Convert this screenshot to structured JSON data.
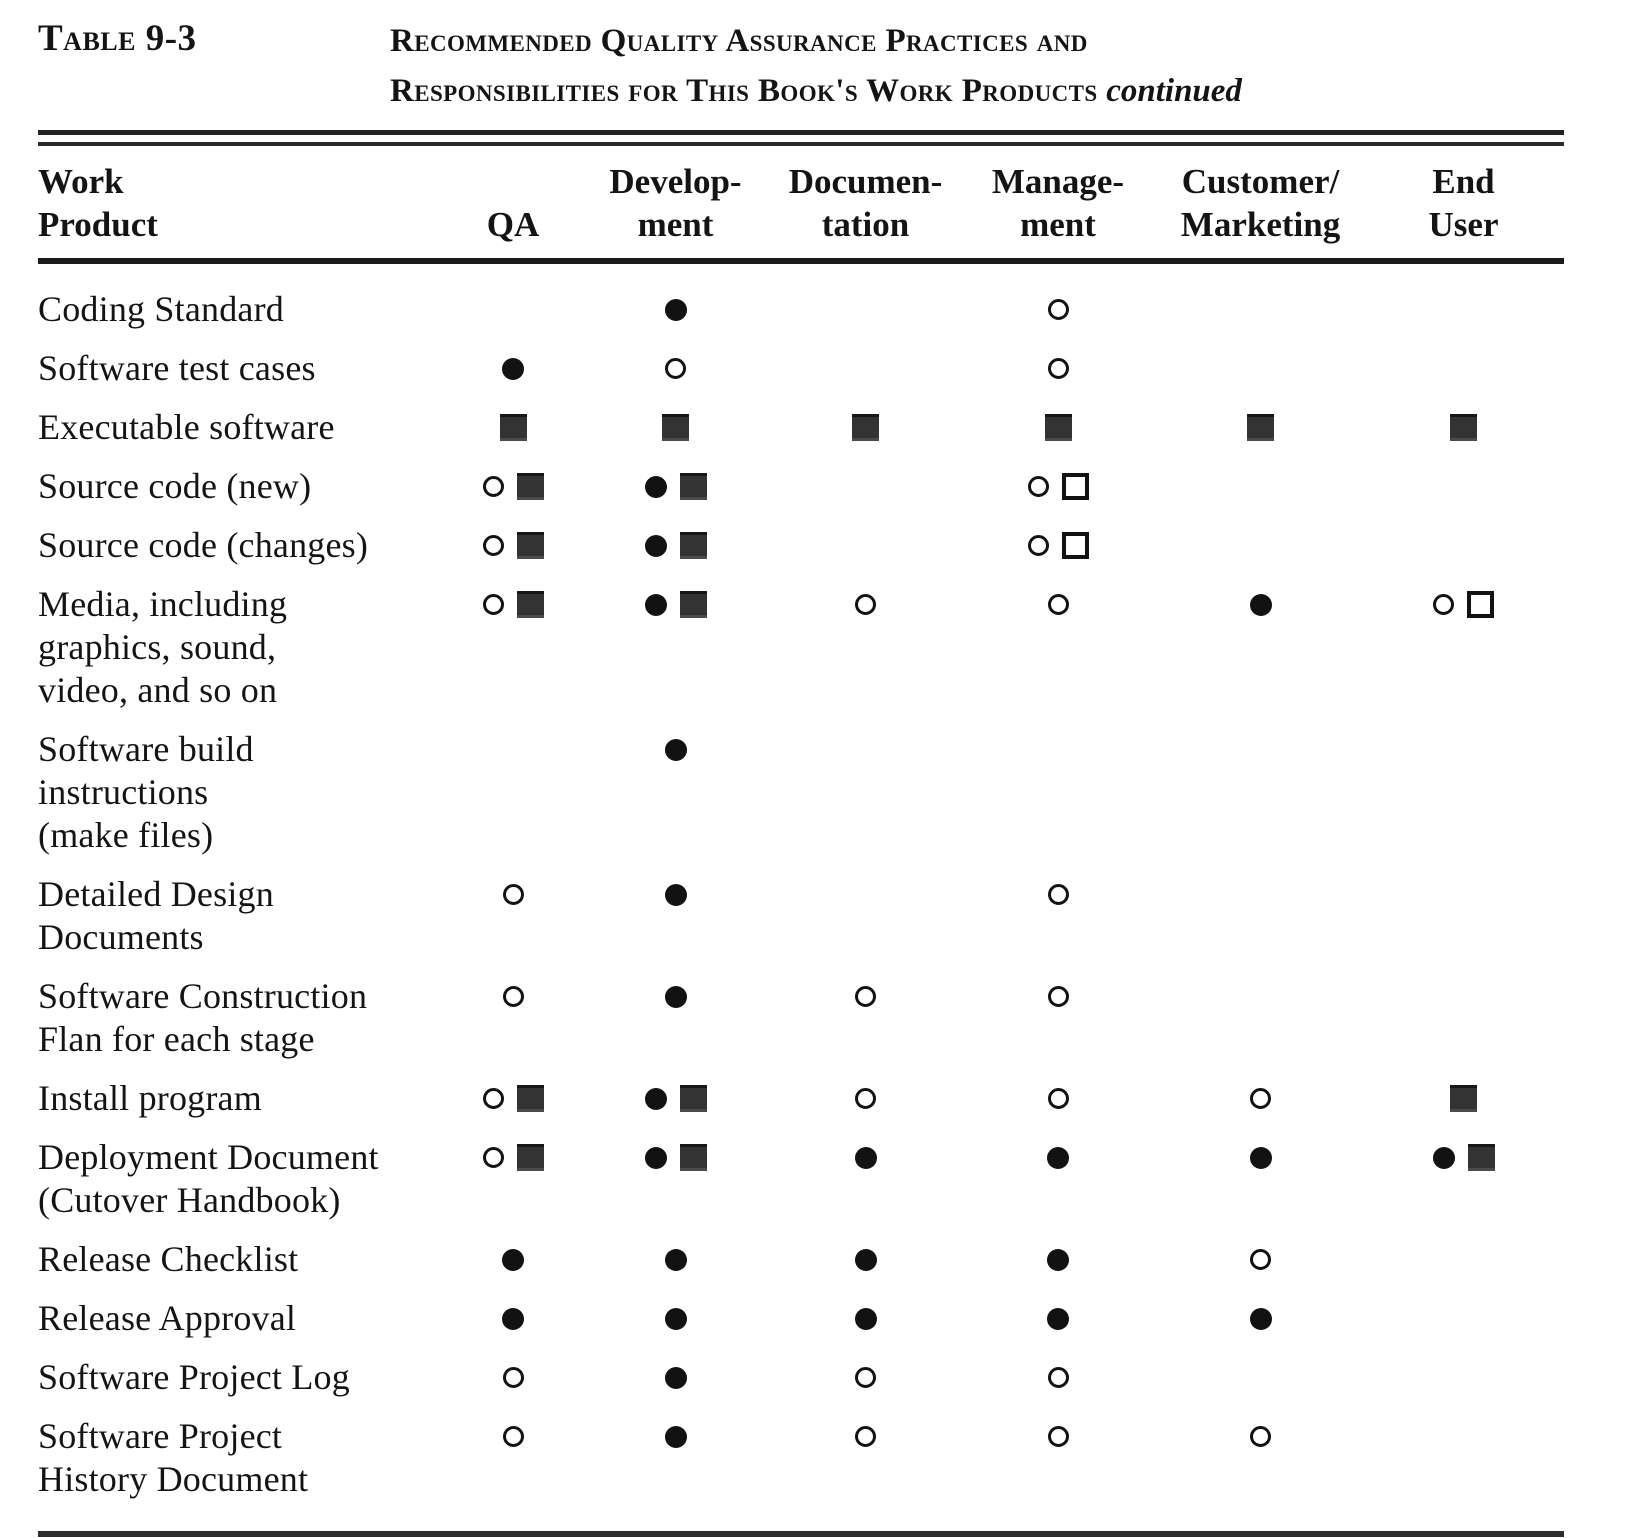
{
  "colors": {
    "ink": "#141414",
    "paper": "#ffffff"
  },
  "caption": {
    "table_label": "Table 9-3",
    "title_line1": "Recommended Quality Assurance Practices and",
    "title_line2": "Responsibilities for This Book's Work Products",
    "continued": "continued"
  },
  "glyphs": {
    "filled-circle": "●",
    "open-circle": "○",
    "filled-square": "■",
    "open-square": "□"
  },
  "table": {
    "columns": [
      "Work\nProduct",
      "QA",
      "Develop-\nment",
      "Documen-\ntation",
      "Manage-\nment",
      "Customer/\nMarketing",
      "End\nUser"
    ],
    "column_keys": [
      "qa",
      "development",
      "documentation",
      "management",
      "customer-marketing",
      "end-user"
    ],
    "rows": [
      {
        "label": "Coding Standard",
        "cells": [
          [],
          [
            "filled-circle"
          ],
          [],
          [
            "open-circle"
          ],
          [],
          []
        ]
      },
      {
        "label": "Software test cases",
        "cells": [
          [
            "filled-circle"
          ],
          [
            "open-circle"
          ],
          [],
          [
            "open-circle"
          ],
          [],
          []
        ]
      },
      {
        "label": "Executable software",
        "cells": [
          [
            "filled-square"
          ],
          [
            "filled-square"
          ],
          [
            "filled-square"
          ],
          [
            "filled-square"
          ],
          [
            "filled-square"
          ],
          [
            "filled-square"
          ]
        ]
      },
      {
        "label": "Source code (new)",
        "cells": [
          [
            "open-circle",
            "filled-square"
          ],
          [
            "filled-circle",
            "filled-square"
          ],
          [],
          [
            "open-circle",
            "open-square"
          ],
          [],
          []
        ]
      },
      {
        "label": "Source code (changes)",
        "cells": [
          [
            "open-circle",
            "filled-square"
          ],
          [
            "filled-circle",
            "filled-square"
          ],
          [],
          [
            "open-circle",
            "open-square"
          ],
          [],
          []
        ]
      },
      {
        "label": "Media, including\ngraphics, sound,\nvideo, and so on",
        "cells": [
          [
            "open-circle",
            "filled-square"
          ],
          [
            "filled-circle",
            "filled-square"
          ],
          [
            "open-circle"
          ],
          [
            "open-circle"
          ],
          [
            "filled-circle"
          ],
          [
            "open-circle",
            "open-square"
          ]
        ]
      },
      {
        "label": "Software build\ninstructions\n(make files)",
        "cells": [
          [],
          [
            "filled-circle"
          ],
          [],
          [],
          [],
          []
        ]
      },
      {
        "label": "Detailed Design\nDocuments",
        "cells": [
          [
            "open-circle"
          ],
          [
            "filled-circle"
          ],
          [],
          [
            "open-circle"
          ],
          [],
          []
        ]
      },
      {
        "label": "Software Construction\nFlan for each stage",
        "cells": [
          [
            "open-circle"
          ],
          [
            "filled-circle"
          ],
          [
            "open-circle"
          ],
          [
            "open-circle"
          ],
          [],
          []
        ]
      },
      {
        "label": "Install program",
        "cells": [
          [
            "open-circle",
            "filled-square"
          ],
          [
            "filled-circle",
            "filled-square"
          ],
          [
            "open-circle"
          ],
          [
            "open-circle"
          ],
          [
            "open-circle"
          ],
          [
            "filled-square"
          ]
        ]
      },
      {
        "label": "Deployment Document\n(Cutover Handbook)",
        "cells": [
          [
            "open-circle",
            "filled-square"
          ],
          [
            "filled-circle",
            "filled-square"
          ],
          [
            "filled-circle"
          ],
          [
            "filled-circle"
          ],
          [
            "filled-circle"
          ],
          [
            "filled-circle",
            "filled-square"
          ]
        ]
      },
      {
        "label": "Release Checklist",
        "cells": [
          [
            "filled-circle"
          ],
          [
            "filled-circle"
          ],
          [
            "filled-circle"
          ],
          [
            "filled-circle"
          ],
          [
            "open-circle"
          ],
          []
        ]
      },
      {
        "label": "Release Approval",
        "cells": [
          [
            "filled-circle"
          ],
          [
            "filled-circle"
          ],
          [
            "filled-circle"
          ],
          [
            "filled-circle"
          ],
          [
            "filled-circle"
          ],
          []
        ]
      },
      {
        "label": "Software Project Log",
        "cells": [
          [
            "open-circle"
          ],
          [
            "filled-circle"
          ],
          [
            "open-circle"
          ],
          [
            "open-circle"
          ],
          [],
          []
        ]
      },
      {
        "label": "Software Project\nHistory Document",
        "cells": [
          [
            "open-circle"
          ],
          [
            "filled-circle"
          ],
          [
            "open-circle"
          ],
          [
            "open-circle"
          ],
          [
            "open-circle"
          ],
          []
        ]
      }
    ]
  }
}
